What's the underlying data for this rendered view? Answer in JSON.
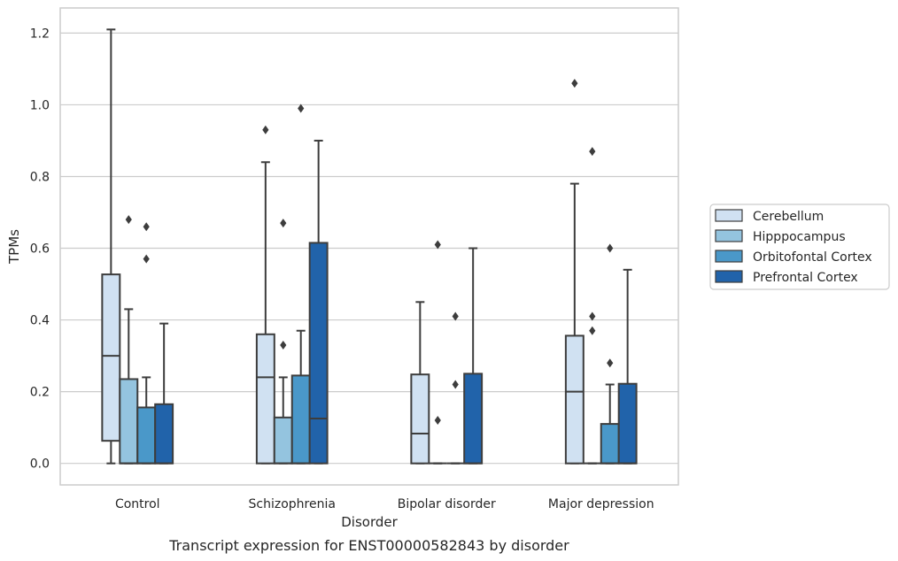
{
  "chart_data": {
    "type": "box",
    "title": "",
    "caption": "Transcript expression for ENST00000582843 by disorder",
    "xlabel": "Disorder",
    "ylabel": "TPMs",
    "ylim": [
      -0.06,
      1.27
    ],
    "yticks": [
      "0.0",
      "0.2",
      "0.4",
      "0.6",
      "0.8",
      "1.0",
      "1.2"
    ],
    "categories": [
      "Control",
      "Schizophrenia",
      "Bipolar disorder",
      "Major depression"
    ],
    "grid": true,
    "legend_position": "right",
    "series": [
      {
        "name": "Cerebellum",
        "color": "#d0e1f2",
        "boxes": [
          {
            "whislo": 0.0,
            "q1": 0.063,
            "med": 0.3,
            "q3": 0.527,
            "whishi": 1.21,
            "fliers": []
          },
          {
            "whislo": 0.0,
            "q1": 0.0,
            "med": 0.24,
            "q3": 0.36,
            "whishi": 0.84,
            "fliers": [
              0.93
            ]
          },
          {
            "whislo": 0.0,
            "q1": 0.0,
            "med": 0.083,
            "q3": 0.248,
            "whishi": 0.45,
            "fliers": []
          },
          {
            "whislo": 0.0,
            "q1": 0.0,
            "med": 0.2,
            "q3": 0.356,
            "whishi": 0.78,
            "fliers": [
              1.06
            ]
          }
        ]
      },
      {
        "name": "Hipppocampus",
        "color": "#94c4df",
        "boxes": [
          {
            "whislo": 0.0,
            "q1": 0.0,
            "med": 0.0,
            "q3": 0.235,
            "whishi": 0.43,
            "fliers": [
              0.68
            ]
          },
          {
            "whislo": 0.0,
            "q1": 0.0,
            "med": 0.0,
            "q3": 0.128,
            "whishi": 0.24,
            "fliers": [
              0.33,
              0.67
            ]
          },
          {
            "whislo": 0.0,
            "q1": 0.0,
            "med": 0.0,
            "q3": 0.0,
            "whishi": 0.0,
            "fliers": [
              0.12,
              0.61
            ]
          },
          {
            "whislo": 0.0,
            "q1": 0.0,
            "med": 0.0,
            "q3": 0.0,
            "whishi": 0.0,
            "fliers": [
              0.37,
              0.41,
              0.87
            ]
          }
        ]
      },
      {
        "name": "Orbitofontal Cortex",
        "color": "#4a98c9",
        "boxes": [
          {
            "whislo": 0.0,
            "q1": 0.0,
            "med": 0.0,
            "q3": 0.156,
            "whishi": 0.24,
            "fliers": [
              0.57,
              0.66
            ]
          },
          {
            "whislo": 0.0,
            "q1": 0.0,
            "med": 0.0,
            "q3": 0.245,
            "whishi": 0.37,
            "fliers": [
              0.99
            ]
          },
          {
            "whislo": 0.0,
            "q1": 0.0,
            "med": 0.0,
            "q3": 0.0,
            "whishi": 0.0,
            "fliers": [
              0.22,
              0.41
            ]
          },
          {
            "whislo": 0.0,
            "q1": 0.0,
            "med": 0.0,
            "q3": 0.11,
            "whishi": 0.22,
            "fliers": [
              0.28,
              0.6
            ]
          }
        ]
      },
      {
        "name": "Prefrontal Cortex",
        "color": "#2163aa",
        "boxes": [
          {
            "whislo": 0.0,
            "q1": 0.0,
            "med": 0.0,
            "q3": 0.165,
            "whishi": 0.39,
            "fliers": []
          },
          {
            "whislo": 0.0,
            "q1": 0.0,
            "med": 0.125,
            "q3": 0.615,
            "whishi": 0.9,
            "fliers": []
          },
          {
            "whislo": 0.0,
            "q1": 0.0,
            "med": 0.0,
            "q3": 0.25,
            "whishi": 0.6,
            "fliers": []
          },
          {
            "whislo": 0.0,
            "q1": 0.0,
            "med": 0.0,
            "q3": 0.222,
            "whishi": 0.54,
            "fliers": []
          }
        ]
      }
    ]
  }
}
